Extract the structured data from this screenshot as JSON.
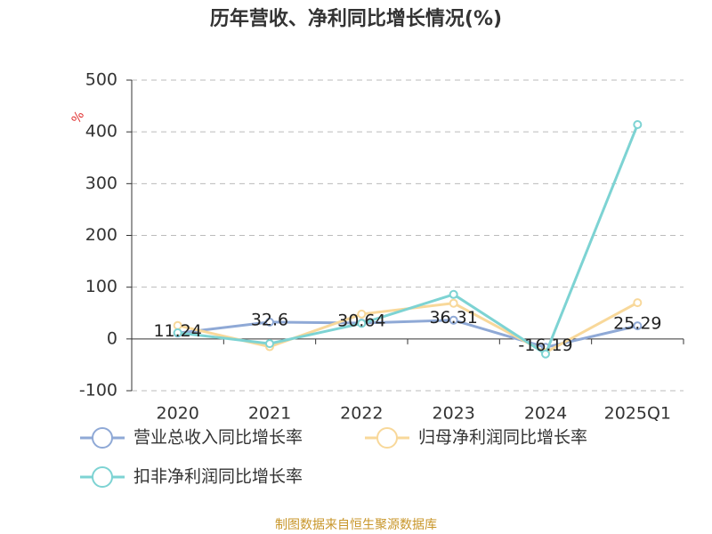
{
  "chart_data": {
    "type": "line",
    "title": "历年营收、净利同比增长情况(%)",
    "y_label": "%",
    "categories": [
      "2020",
      "2021",
      "2022",
      "2023",
      "2024",
      "2025Q1"
    ],
    "series": [
      {
        "name": "营业总收入同比增长率",
        "color": "#8fa9d6",
        "values": [
          11.24,
          32.6,
          30.64,
          36.31,
          -16.19,
          25.29
        ],
        "show_labels": true
      },
      {
        "name": "归母净利润同比增长率",
        "color": "#f8d89a",
        "values": [
          26,
          -15,
          48,
          69,
          -26,
          70
        ]
      },
      {
        "name": "扣非净利润同比增长率",
        "color": "#7dd3d3",
        "values": [
          12,
          -9,
          30,
          86,
          -29,
          414
        ]
      }
    ],
    "ylim": [
      -100,
      500
    ],
    "yticks": [
      -100,
      0,
      100,
      200,
      300,
      400,
      500
    ],
    "grid": true,
    "source": "制图数据来自恒生聚源数据库"
  }
}
